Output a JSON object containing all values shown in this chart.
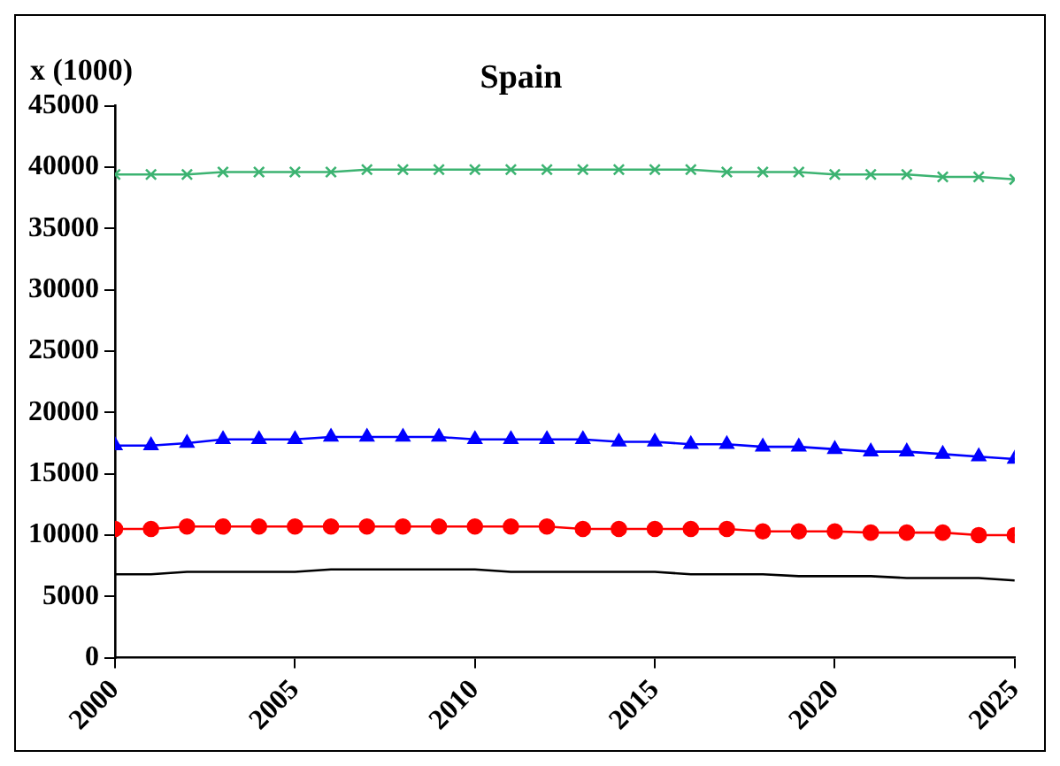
{
  "chart_data": {
    "type": "line",
    "title": "Spain",
    "ylabel": "x (1000)",
    "x": [
      2000,
      2001,
      2002,
      2003,
      2004,
      2005,
      2006,
      2007,
      2008,
      2009,
      2010,
      2011,
      2012,
      2013,
      2014,
      2015,
      2016,
      2017,
      2018,
      2019,
      2020,
      2021,
      2022,
      2023,
      2024,
      2025
    ],
    "xlim": [
      2000,
      2025
    ],
    "xticks": [
      2000,
      2005,
      2010,
      2015,
      2020,
      2025
    ],
    "ylim": [
      0,
      45000
    ],
    "yticks": [
      0,
      5000,
      10000,
      15000,
      20000,
      25000,
      30000,
      35000,
      40000,
      45000
    ],
    "grid": false,
    "legend": false,
    "series": [
      {
        "color": "#000000",
        "marker": "none",
        "values": [
          6800,
          6800,
          7000,
          7000,
          7000,
          7000,
          7200,
          7200,
          7200,
          7200,
          7200,
          7000,
          7000,
          7000,
          7000,
          7000,
          6800,
          6800,
          6800,
          6650,
          6650,
          6650,
          6500,
          6500,
          6500,
          6300
        ]
      },
      {
        "color": "#ff0000",
        "marker": "circle",
        "values": [
          10500,
          10500,
          10700,
          10700,
          10700,
          10700,
          10700,
          10700,
          10700,
          10700,
          10700,
          10700,
          10700,
          10500,
          10500,
          10500,
          10500,
          10500,
          10300,
          10300,
          10300,
          10200,
          10200,
          10200,
          10000,
          10000
        ]
      },
      {
        "color": "#0000ff",
        "marker": "triangle",
        "values": [
          17300,
          17300,
          17500,
          17800,
          17800,
          17800,
          18000,
          18000,
          18000,
          18000,
          17800,
          17800,
          17800,
          17800,
          17600,
          17600,
          17400,
          17400,
          17200,
          17200,
          17000,
          16800,
          16800,
          16600,
          16400,
          16200
        ]
      },
      {
        "color": "#3cb371",
        "marker": "cross",
        "values": [
          39400,
          39400,
          39400,
          39600,
          39600,
          39600,
          39600,
          39800,
          39800,
          39800,
          39800,
          39800,
          39800,
          39800,
          39800,
          39800,
          39800,
          39600,
          39600,
          39600,
          39400,
          39400,
          39400,
          39200,
          39200,
          39000
        ]
      }
    ]
  }
}
